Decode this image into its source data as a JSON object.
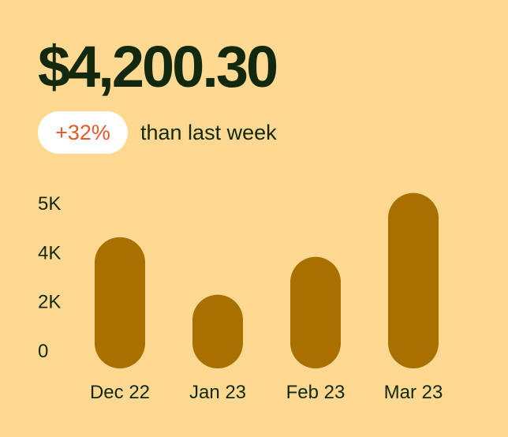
{
  "header": {
    "amount": "$4,200.30",
    "change_badge": "+32%",
    "comparison_text": "than last week"
  },
  "colors": {
    "background": "#FFD991",
    "bar": "#A87000",
    "badge_text": "#E8572A",
    "text": "#13290F"
  },
  "chart_data": {
    "type": "bar",
    "categories": [
      "Dec 22",
      "Jan 23",
      "Feb 23",
      "Mar 23"
    ],
    "values": [
      4300,
      2260,
      3800,
      5200
    ],
    "y_ticks": [
      0,
      2000,
      4000,
      5000
    ],
    "y_tick_labels": [
      "0",
      "2K",
      "4K",
      "5K"
    ],
    "grid": false,
    "bar_style": "rounded-pill"
  }
}
